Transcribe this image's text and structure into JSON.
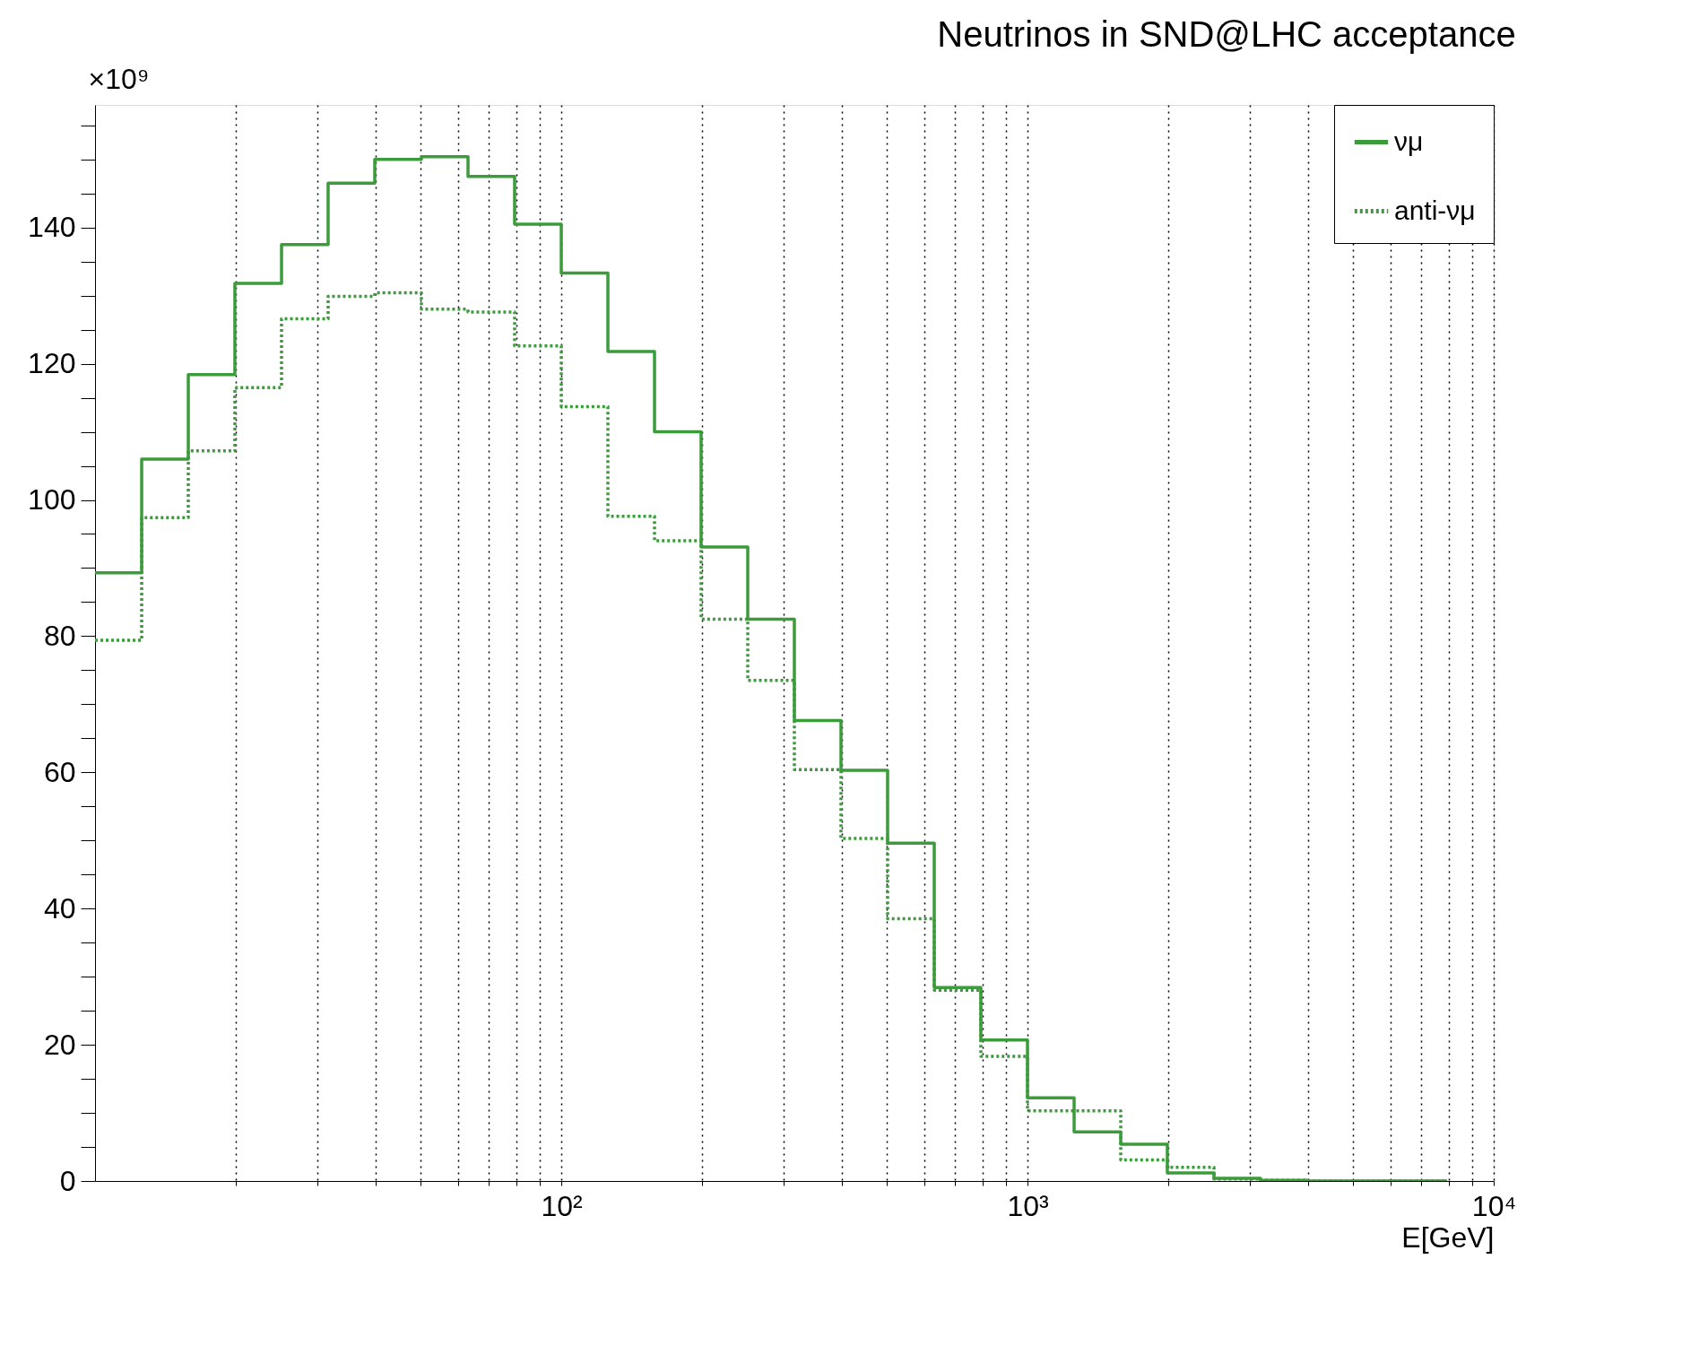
{
  "chart_data": {
    "type": "step",
    "title": "Neutrinos in SND@LHC acceptance",
    "xlabel": "E[GeV]",
    "ylabel": "×10⁹",
    "x": [
      10,
      12.59,
      15.85,
      19.95,
      25.12,
      31.62,
      39.81,
      50.12,
      63.1,
      79.43,
      100,
      125.9,
      158.5,
      199.5,
      251.2,
      316.2,
      398.1,
      501.2,
      631,
      794.3,
      1000,
      1259,
      1585,
      1995,
      2512,
      3162,
      3981,
      5012,
      6310,
      7943
    ],
    "series": [
      {
        "name": "νμ",
        "color": "#3c9c3c",
        "line_style": "solid",
        "values": [
          89.3,
          106,
          118.4,
          131.8,
          137.5,
          146.5,
          150,
          150.4,
          147.5,
          140.5,
          133.3,
          121.8,
          110,
          93.1,
          82.5,
          67.6,
          60.3,
          49.6,
          28.4,
          20.7,
          12.2,
          7.2,
          5.4,
          1.2,
          0.4,
          0.1,
          0,
          0,
          0,
          0
        ]
      },
      {
        "name": "anti-νμ",
        "color": "#3c9c3c",
        "line_style": "dotted",
        "values": [
          79.4,
          97.4,
          107.2,
          116.5,
          126.6,
          129.9,
          130.4,
          128,
          127.6,
          122.6,
          113.7,
          97.6,
          94,
          82.5,
          73.5,
          60.4,
          50.3,
          38.5,
          28,
          18.3,
          10.3,
          10.3,
          3.1,
          2,
          0.3,
          0.1,
          0,
          0,
          0,
          0
        ]
      }
    ],
    "log": "x",
    "xlim": [
      10,
      10000
    ],
    "ylim": [
      0,
      158
    ],
    "xticks": [
      {
        "value": 20,
        "label": null
      },
      {
        "value": 30,
        "label": null
      },
      {
        "value": 40,
        "label": null
      },
      {
        "value": 50,
        "label": null
      },
      {
        "value": 60,
        "label": null
      },
      {
        "value": 70,
        "label": null
      },
      {
        "value": 80,
        "label": null
      },
      {
        "value": 90,
        "label": null
      },
      {
        "value": 100,
        "label": "10²"
      },
      {
        "value": 200,
        "label": null
      },
      {
        "value": 300,
        "label": null
      },
      {
        "value": 400,
        "label": null
      },
      {
        "value": 500,
        "label": null
      },
      {
        "value": 600,
        "label": null
      },
      {
        "value": 700,
        "label": null
      },
      {
        "value": 800,
        "label": null
      },
      {
        "value": 900,
        "label": null
      },
      {
        "value": 1000,
        "label": "10³"
      },
      {
        "value": 2000,
        "label": null
      },
      {
        "value": 3000,
        "label": null
      },
      {
        "value": 4000,
        "label": null
      },
      {
        "value": 5000,
        "label": null
      },
      {
        "value": 6000,
        "label": null
      },
      {
        "value": 7000,
        "label": null
      },
      {
        "value": 8000,
        "label": null
      },
      {
        "value": 9000,
        "label": null
      },
      {
        "value": 10000,
        "label": "10⁴"
      }
    ],
    "yticks": [
      0,
      {
        "value": 5,
        "label": null
      },
      {
        "value": 10,
        "label": null
      },
      {
        "value": 15,
        "label": null
      },
      20,
      {
        "value": 25,
        "label": null
      },
      {
        "value": 30,
        "label": null
      },
      {
        "value": 35,
        "label": null
      },
      40,
      {
        "value": 45,
        "label": null
      },
      {
        "value": 50,
        "label": null
      },
      {
        "value": 55,
        "label": null
      },
      60,
      {
        "value": 65,
        "label": null
      },
      {
        "value": 70,
        "label": null
      },
      {
        "value": 75,
        "label": null
      },
      80,
      {
        "value": 85,
        "label": null
      },
      {
        "value": 90,
        "label": null
      },
      {
        "value": 95,
        "label": null
      },
      100,
      {
        "value": 105,
        "label": null
      },
      {
        "value": 110,
        "label": null
      },
      {
        "value": 115,
        "label": null
      },
      120,
      {
        "value": 125,
        "label": null
      },
      {
        "value": 130,
        "label": null
      },
      {
        "value": 135,
        "label": null
      },
      140,
      {
        "value": 145,
        "label": null
      },
      {
        "value": 150,
        "label": null
      },
      {
        "value": 155,
        "label": null
      }
    ],
    "grid": "x",
    "legend": "top right"
  }
}
